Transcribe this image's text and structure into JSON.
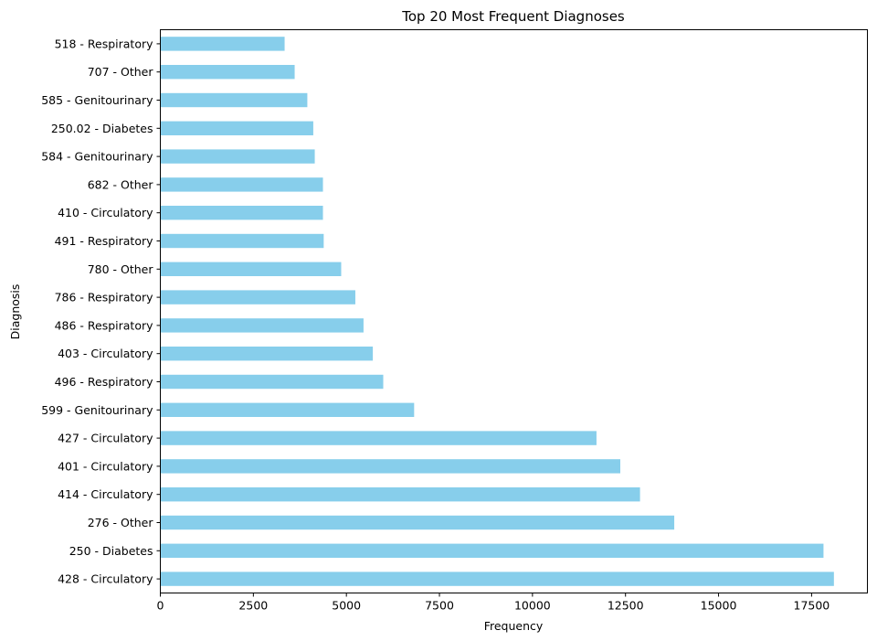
{
  "chart_data": {
    "type": "bar",
    "orientation": "horizontal",
    "title": "Top 20 Most Frequent Diagnoses",
    "xlabel": "Frequency",
    "ylabel": "Diagnosis",
    "xlim": [
      0,
      19000
    ],
    "xticks": [
      0,
      2500,
      5000,
      7500,
      10000,
      12500,
      15000,
      17500
    ],
    "bar_color": "#87ceeb",
    "grid": false,
    "categories": [
      "518 - Respiratory",
      "707 - Other",
      "585 - Genitourinary",
      "250.02 - Diabetes",
      "584 - Genitourinary",
      "682 - Other",
      "410 - Circulatory",
      "491 - Respiratory",
      "780 - Other",
      "786 - Respiratory",
      "486 - Respiratory",
      "403 - Circulatory",
      "496 - Respiratory",
      "599 - Genitourinary",
      "427 - Circulatory",
      "401 - Circulatory",
      "414 - Circulatory",
      "276 - Other",
      "250 - Diabetes",
      "428 - Circulatory"
    ],
    "values": [
      3340,
      3610,
      3950,
      4110,
      4150,
      4370,
      4370,
      4390,
      4860,
      5240,
      5460,
      5710,
      5990,
      6820,
      11720,
      12360,
      12890,
      13810,
      17820,
      18100
    ]
  }
}
